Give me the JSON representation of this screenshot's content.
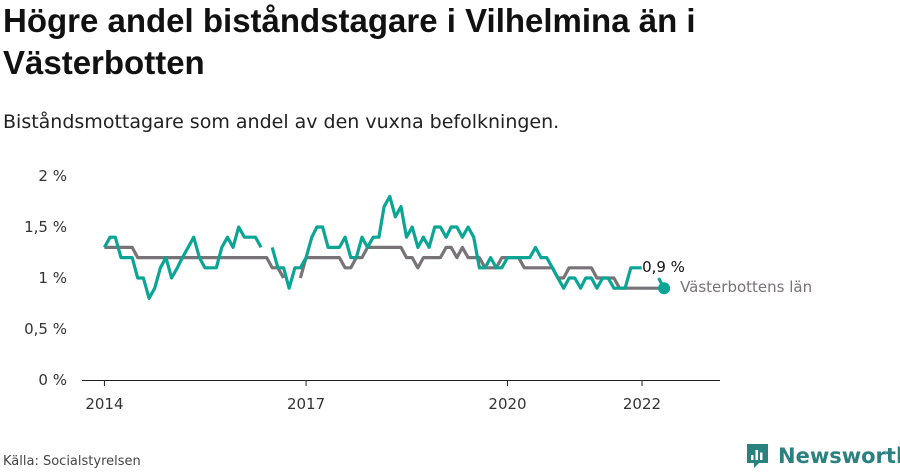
{
  "title": "Högre andel biståndstagare i Vilhelmina än i Västerbotten",
  "subtitle": "Biståndsmottagare som andel av den vuxna befolkningen.",
  "source": "Källa: Socialstyrelsen",
  "brand": "Newsworthy",
  "colors": {
    "vilhelmina": "#0aa595",
    "lan": "#777377",
    "axis": "#222222",
    "grid_text": "#333333"
  },
  "icons": [
    "newsworthy-logo-icon"
  ],
  "chart_data": {
    "type": "line",
    "x_type": "date",
    "ylim": [
      0,
      2
    ],
    "yticks": [
      0,
      0.5,
      1,
      1.5,
      2
    ],
    "ytick_labels": [
      "0 %",
      "0,5 %",
      "1 %",
      "1,5 %",
      "2 %"
    ],
    "xlim": [
      "2013-09-01",
      "2023-03-01"
    ],
    "xticks": [
      "2014-01-01",
      "2017-01-01",
      "2020-01-01",
      "2022-01-01"
    ],
    "xtick_labels": [
      "2014",
      "2017",
      "2020",
      "2022"
    ],
    "end_label": "0,9 %",
    "series": [
      {
        "name": "",
        "color": "#0aa595",
        "points": [
          [
            "2014-01-01",
            1.3
          ],
          [
            "2014-02-01",
            1.4
          ],
          [
            "2014-03-01",
            1.4
          ],
          [
            "2014-04-01",
            1.2
          ],
          [
            "2014-05-01",
            1.2
          ],
          [
            "2014-06-01",
            1.2
          ],
          [
            "2014-07-01",
            1.0
          ],
          [
            "2014-08-01",
            1.0
          ],
          [
            "2014-09-01",
            0.8
          ],
          [
            "2014-10-01",
            0.9
          ],
          [
            "2014-11-01",
            1.1
          ],
          [
            "2014-12-01",
            1.2
          ],
          [
            "2015-01-01",
            1.0
          ],
          [
            "2015-02-01",
            1.1
          ],
          [
            "2015-03-01",
            1.2
          ],
          [
            "2015-04-01",
            1.3
          ],
          [
            "2015-05-01",
            1.4
          ],
          [
            "2015-06-01",
            1.2
          ],
          [
            "2015-07-01",
            1.1
          ],
          [
            "2015-08-01",
            1.1
          ],
          [
            "2015-09-01",
            1.1
          ],
          [
            "2015-10-01",
            1.3
          ],
          [
            "2015-11-01",
            1.4
          ],
          [
            "2015-12-01",
            1.3
          ],
          [
            "2016-01-01",
            1.5
          ],
          [
            "2016-02-01",
            1.4
          ],
          [
            "2016-03-01",
            1.4
          ],
          [
            "2016-04-01",
            1.4
          ],
          [
            "2016-05-01",
            1.3
          ],
          [
            "2016-06-01",
            null
          ],
          [
            "2016-07-01",
            1.3
          ],
          [
            "2016-08-01",
            1.1
          ],
          [
            "2016-09-01",
            1.1
          ],
          [
            "2016-10-01",
            0.9
          ],
          [
            "2016-11-01",
            1.1
          ],
          [
            "2016-12-01",
            1.1
          ],
          [
            "2017-01-01",
            1.2
          ],
          [
            "2017-02-01",
            1.4
          ],
          [
            "2017-03-01",
            1.5
          ],
          [
            "2017-04-01",
            1.5
          ],
          [
            "2017-05-01",
            1.3
          ],
          [
            "2017-06-01",
            1.3
          ],
          [
            "2017-07-01",
            1.3
          ],
          [
            "2017-08-01",
            1.4
          ],
          [
            "2017-09-01",
            1.2
          ],
          [
            "2017-10-01",
            1.2
          ],
          [
            "2017-11-01",
            1.4
          ],
          [
            "2017-12-01",
            1.3
          ],
          [
            "2018-01-01",
            1.4
          ],
          [
            "2018-02-01",
            1.4
          ],
          [
            "2018-03-01",
            1.7
          ],
          [
            "2018-04-01",
            1.8
          ],
          [
            "2018-05-01",
            1.6
          ],
          [
            "2018-06-01",
            1.7
          ],
          [
            "2018-07-01",
            1.4
          ],
          [
            "2018-08-01",
            1.5
          ],
          [
            "2018-09-01",
            1.3
          ],
          [
            "2018-10-01",
            1.4
          ],
          [
            "2018-11-01",
            1.3
          ],
          [
            "2018-12-01",
            1.5
          ],
          [
            "2019-01-01",
            1.5
          ],
          [
            "2019-02-01",
            1.4
          ],
          [
            "2019-03-01",
            1.5
          ],
          [
            "2019-04-01",
            1.5
          ],
          [
            "2019-05-01",
            1.4
          ],
          [
            "2019-06-01",
            1.5
          ],
          [
            "2019-07-01",
            1.4
          ],
          [
            "2019-08-01",
            1.1
          ],
          [
            "2019-09-01",
            1.1
          ],
          [
            "2019-10-01",
            1.2
          ],
          [
            "2019-11-01",
            1.1
          ],
          [
            "2019-12-01",
            1.1
          ],
          [
            "2020-01-01",
            1.2
          ],
          [
            "2020-02-01",
            1.2
          ],
          [
            "2020-03-01",
            1.2
          ],
          [
            "2020-04-01",
            1.2
          ],
          [
            "2020-05-01",
            1.2
          ],
          [
            "2020-06-01",
            1.3
          ],
          [
            "2020-07-01",
            1.2
          ],
          [
            "2020-08-01",
            1.2
          ],
          [
            "2020-09-01",
            1.1
          ],
          [
            "2020-10-01",
            1.0
          ],
          [
            "2020-11-01",
            0.9
          ],
          [
            "2020-12-01",
            1.0
          ],
          [
            "2021-01-01",
            1.0
          ],
          [
            "2021-02-01",
            0.9
          ],
          [
            "2021-03-01",
            1.0
          ],
          [
            "2021-04-01",
            1.0
          ],
          [
            "2021-05-01",
            0.9
          ],
          [
            "2021-06-01",
            1.0
          ],
          [
            "2021-07-01",
            1.0
          ],
          [
            "2021-08-01",
            0.9
          ],
          [
            "2021-09-01",
            0.9
          ],
          [
            "2021-10-01",
            0.9
          ],
          [
            "2021-11-01",
            1.1
          ],
          [
            "2021-12-01",
            1.1
          ],
          [
            "2022-01-01",
            1.1
          ],
          [
            "2022-02-01",
            null
          ],
          [
            "2022-03-01",
            null
          ],
          [
            "2022-04-01",
            1.0
          ],
          [
            "2022-05-01",
            0.9
          ]
        ]
      },
      {
        "name": "Västerbottens län",
        "color": "#777377",
        "points": [
          [
            "2014-01-01",
            1.3
          ],
          [
            "2014-02-01",
            1.3
          ],
          [
            "2014-03-01",
            1.3
          ],
          [
            "2014-04-01",
            1.3
          ],
          [
            "2014-05-01",
            1.3
          ],
          [
            "2014-06-01",
            1.3
          ],
          [
            "2014-07-01",
            1.2
          ],
          [
            "2014-08-01",
            1.2
          ],
          [
            "2014-09-01",
            1.2
          ],
          [
            "2014-10-01",
            1.2
          ],
          [
            "2014-11-01",
            1.2
          ],
          [
            "2014-12-01",
            1.2
          ],
          [
            "2015-01-01",
            1.2
          ],
          [
            "2015-02-01",
            1.2
          ],
          [
            "2015-03-01",
            1.2
          ],
          [
            "2015-04-01",
            1.2
          ],
          [
            "2015-05-01",
            1.2
          ],
          [
            "2015-06-01",
            1.2
          ],
          [
            "2015-07-01",
            1.2
          ],
          [
            "2015-08-01",
            1.2
          ],
          [
            "2015-09-01",
            1.2
          ],
          [
            "2015-10-01",
            1.2
          ],
          [
            "2015-11-01",
            1.2
          ],
          [
            "2015-12-01",
            1.2
          ],
          [
            "2016-01-01",
            1.2
          ],
          [
            "2016-02-01",
            1.2
          ],
          [
            "2016-03-01",
            1.2
          ],
          [
            "2016-04-01",
            1.2
          ],
          [
            "2016-05-01",
            1.2
          ],
          [
            "2016-06-01",
            1.2
          ],
          [
            "2016-07-01",
            1.1
          ],
          [
            "2016-08-01",
            1.1
          ],
          [
            "2016-09-01",
            1.0
          ],
          [
            "2016-10-01",
            null
          ],
          [
            "2016-11-01",
            null
          ],
          [
            "2016-12-01",
            1.0
          ],
          [
            "2017-01-01",
            1.2
          ],
          [
            "2017-02-01",
            1.2
          ],
          [
            "2017-03-01",
            1.2
          ],
          [
            "2017-04-01",
            1.2
          ],
          [
            "2017-05-01",
            1.2
          ],
          [
            "2017-06-01",
            1.2
          ],
          [
            "2017-07-01",
            1.2
          ],
          [
            "2017-08-01",
            1.1
          ],
          [
            "2017-09-01",
            1.1
          ],
          [
            "2017-10-01",
            1.2
          ],
          [
            "2017-11-01",
            1.2
          ],
          [
            "2017-12-01",
            1.3
          ],
          [
            "2018-01-01",
            1.3
          ],
          [
            "2018-02-01",
            1.3
          ],
          [
            "2018-03-01",
            1.3
          ],
          [
            "2018-04-01",
            1.3
          ],
          [
            "2018-05-01",
            1.3
          ],
          [
            "2018-06-01",
            1.3
          ],
          [
            "2018-07-01",
            1.2
          ],
          [
            "2018-08-01",
            1.2
          ],
          [
            "2018-09-01",
            1.1
          ],
          [
            "2018-10-01",
            1.2
          ],
          [
            "2018-11-01",
            1.2
          ],
          [
            "2018-12-01",
            1.2
          ],
          [
            "2019-01-01",
            1.2
          ],
          [
            "2019-02-01",
            1.3
          ],
          [
            "2019-03-01",
            1.3
          ],
          [
            "2019-04-01",
            1.2
          ],
          [
            "2019-05-01",
            1.3
          ],
          [
            "2019-06-01",
            1.2
          ],
          [
            "2019-07-01",
            1.2
          ],
          [
            "2019-08-01",
            1.2
          ],
          [
            "2019-09-01",
            1.1
          ],
          [
            "2019-10-01",
            1.1
          ],
          [
            "2019-11-01",
            1.1
          ],
          [
            "2019-12-01",
            1.2
          ],
          [
            "2020-01-01",
            1.2
          ],
          [
            "2020-02-01",
            1.2
          ],
          [
            "2020-03-01",
            1.2
          ],
          [
            "2020-04-01",
            1.1
          ],
          [
            "2020-05-01",
            1.1
          ],
          [
            "2020-06-01",
            1.1
          ],
          [
            "2020-07-01",
            1.1
          ],
          [
            "2020-08-01",
            1.1
          ],
          [
            "2020-09-01",
            1.1
          ],
          [
            "2020-10-01",
            1.0
          ],
          [
            "2020-11-01",
            1.0
          ],
          [
            "2020-12-01",
            1.1
          ],
          [
            "2021-01-01",
            1.1
          ],
          [
            "2021-02-01",
            1.1
          ],
          [
            "2021-03-01",
            1.1
          ],
          [
            "2021-04-01",
            1.1
          ],
          [
            "2021-05-01",
            1.0
          ],
          [
            "2021-06-01",
            1.0
          ],
          [
            "2021-07-01",
            1.0
          ],
          [
            "2021-08-01",
            1.0
          ],
          [
            "2021-09-01",
            0.9
          ],
          [
            "2021-10-01",
            0.9
          ],
          [
            "2021-11-01",
            0.9
          ],
          [
            "2021-12-01",
            0.9
          ],
          [
            "2022-01-01",
            0.9
          ],
          [
            "2022-02-01",
            0.9
          ],
          [
            "2022-03-01",
            0.9
          ],
          [
            "2022-04-01",
            0.9
          ],
          [
            "2022-05-01",
            0.9
          ]
        ]
      }
    ]
  }
}
